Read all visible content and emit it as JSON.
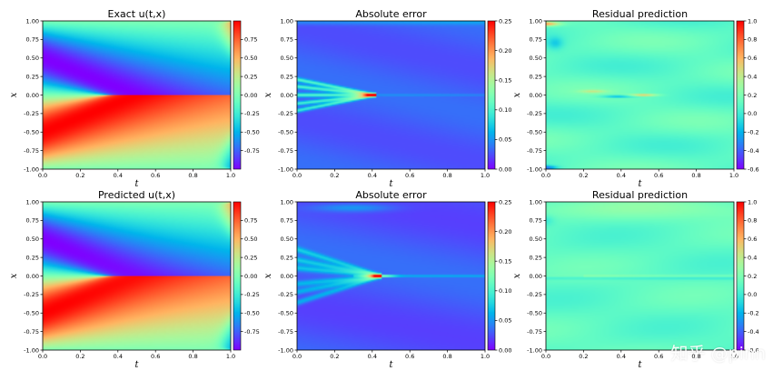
{
  "chart_data": [
    {
      "type": "heatmap",
      "title": "Exact u(t,x)",
      "field": "exact",
      "xlabel": "t",
      "ylabel": "x",
      "xlim": [
        0,
        1
      ],
      "ylim": [
        -1,
        1
      ],
      "xticks": [
        "0.0",
        "0.2",
        "0.4",
        "0.6",
        "0.8",
        "1.0"
      ],
      "yticks": [
        "1.00",
        "0.75",
        "0.50",
        "0.25",
        "0.00",
        "-0.25",
        "-0.50",
        "-0.75",
        "-1.00"
      ],
      "colorbar": {
        "range": [
          -1,
          1
        ],
        "ticks": [
          "0.75",
          "0.50",
          "0.25",
          "0.00",
          "-0.25",
          "-0.50",
          "-0.75"
        ]
      }
    },
    {
      "type": "heatmap",
      "title": "Absolute error",
      "field": "err_top",
      "xlabel": "t",
      "ylabel": "x",
      "xlim": [
        0,
        1
      ],
      "ylim": [
        -1,
        1
      ],
      "xticks": [
        "0.0",
        "0.2",
        "0.4",
        "0.6",
        "0.8",
        "1.0"
      ],
      "yticks": [
        "1.00",
        "0.75",
        "0.50",
        "0.25",
        "0.00",
        "-0.25",
        "-0.50",
        "-0.75",
        "-1.00"
      ],
      "colorbar": {
        "range": [
          0,
          0.25
        ],
        "ticks": [
          "0.25",
          "0.20",
          "0.15",
          "0.10",
          "0.05",
          "0.00"
        ]
      }
    },
    {
      "type": "heatmap",
      "title": "Residual prediction",
      "field": "res_top",
      "xlabel": "t",
      "ylabel": "x",
      "xlim": [
        0,
        1
      ],
      "ylim": [
        -1,
        1
      ],
      "xticks": [
        "0.0",
        "0.2",
        "0.4",
        "0.6",
        "0.8",
        "1.0"
      ],
      "yticks": [
        "1.00",
        "0.75",
        "0.50",
        "0.25",
        "0.00",
        "-0.25",
        "-0.50",
        "-0.75",
        "-1.00"
      ],
      "colorbar": {
        "range": [
          -0.6,
          1
        ],
        "ticks": [
          "1.0",
          "0.8",
          "0.6",
          "0.4",
          "0.2",
          "0.0",
          "-0.2",
          "-0.4",
          "-0.6"
        ]
      }
    },
    {
      "type": "heatmap",
      "title": "Predicted u(t,x)",
      "field": "pred",
      "xlabel": "t",
      "ylabel": "x",
      "xlim": [
        0,
        1
      ],
      "ylim": [
        -1,
        1
      ],
      "xticks": [
        "0.0",
        "0.2",
        "0.4",
        "0.6",
        "0.8",
        "1.0"
      ],
      "yticks": [
        "1.00",
        "0.75",
        "0.50",
        "0.25",
        "0.00",
        "-0.25",
        "-0.50",
        "-0.75",
        "-1.00"
      ],
      "colorbar": {
        "range": [
          -1,
          1
        ],
        "ticks": [
          "0.75",
          "0.50",
          "0.25",
          "0.00",
          "-0.25",
          "-0.50",
          "-0.75"
        ]
      }
    },
    {
      "type": "heatmap",
      "title": "Absolute error",
      "field": "err_bot",
      "xlabel": "t",
      "ylabel": "x",
      "xlim": [
        0,
        1
      ],
      "ylim": [
        -1,
        1
      ],
      "xticks": [
        "0.0",
        "0.2",
        "0.4",
        "0.6",
        "0.8",
        "1.0"
      ],
      "yticks": [
        "1.00",
        "0.75",
        "0.50",
        "0.25",
        "0.00",
        "-0.25",
        "-0.50",
        "-0.75",
        "-1.00"
      ],
      "colorbar": {
        "range": [
          0,
          0.25
        ],
        "ticks": [
          "0.25",
          "0.20",
          "0.15",
          "0.10",
          "0.05",
          "0.00"
        ]
      }
    },
    {
      "type": "heatmap",
      "title": "Residual prediction",
      "field": "res_bot",
      "xlabel": "t",
      "ylabel": "x",
      "xlim": [
        0,
        1
      ],
      "ylim": [
        -1,
        1
      ],
      "xticks": [
        "0.0",
        "0.2",
        "0.4",
        "0.6",
        "0.8",
        "1.0"
      ],
      "yticks": [
        "1.00",
        "0.75",
        "0.50",
        "0.25",
        "0.00",
        "-0.25",
        "-0.50",
        "-0.75",
        "-1.00"
      ],
      "colorbar": {
        "range": [
          -0.6,
          1
        ],
        "ticks": [
          "1.0",
          "0.8",
          "0.6",
          "0.4",
          "0.2",
          "0.0",
          "-0.2",
          "-0.4",
          "-0.6"
        ]
      }
    }
  ],
  "watermark": "知乎 @pinn"
}
